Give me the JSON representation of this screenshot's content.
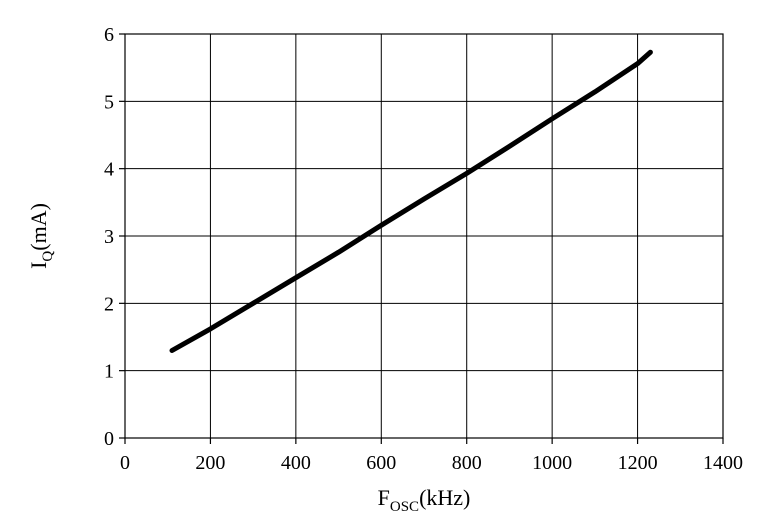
{
  "chart_data": {
    "type": "line",
    "xlabel": {
      "main": "F",
      "sub": "OSC",
      "rest": "(kHz)"
    },
    "ylabel": {
      "main": "I",
      "sub": "Q",
      "rest": "(mA)"
    },
    "xlim": [
      0,
      1400
    ],
    "ylim": [
      0,
      6
    ],
    "xticks": [
      0,
      200,
      400,
      600,
      800,
      1000,
      1200,
      1400
    ],
    "yticks": [
      0,
      1,
      2,
      3,
      4,
      5,
      6
    ],
    "grid": true,
    "series": [
      {
        "x": [
          110,
          200,
          300,
          400,
          500,
          600,
          700,
          800,
          900,
          1000,
          1100,
          1200,
          1230
        ],
        "y": [
          1.3,
          1.62,
          2.0,
          2.38,
          2.76,
          3.16,
          3.55,
          3.93,
          4.33,
          4.74,
          5.14,
          5.56,
          5.73
        ]
      }
    ]
  }
}
